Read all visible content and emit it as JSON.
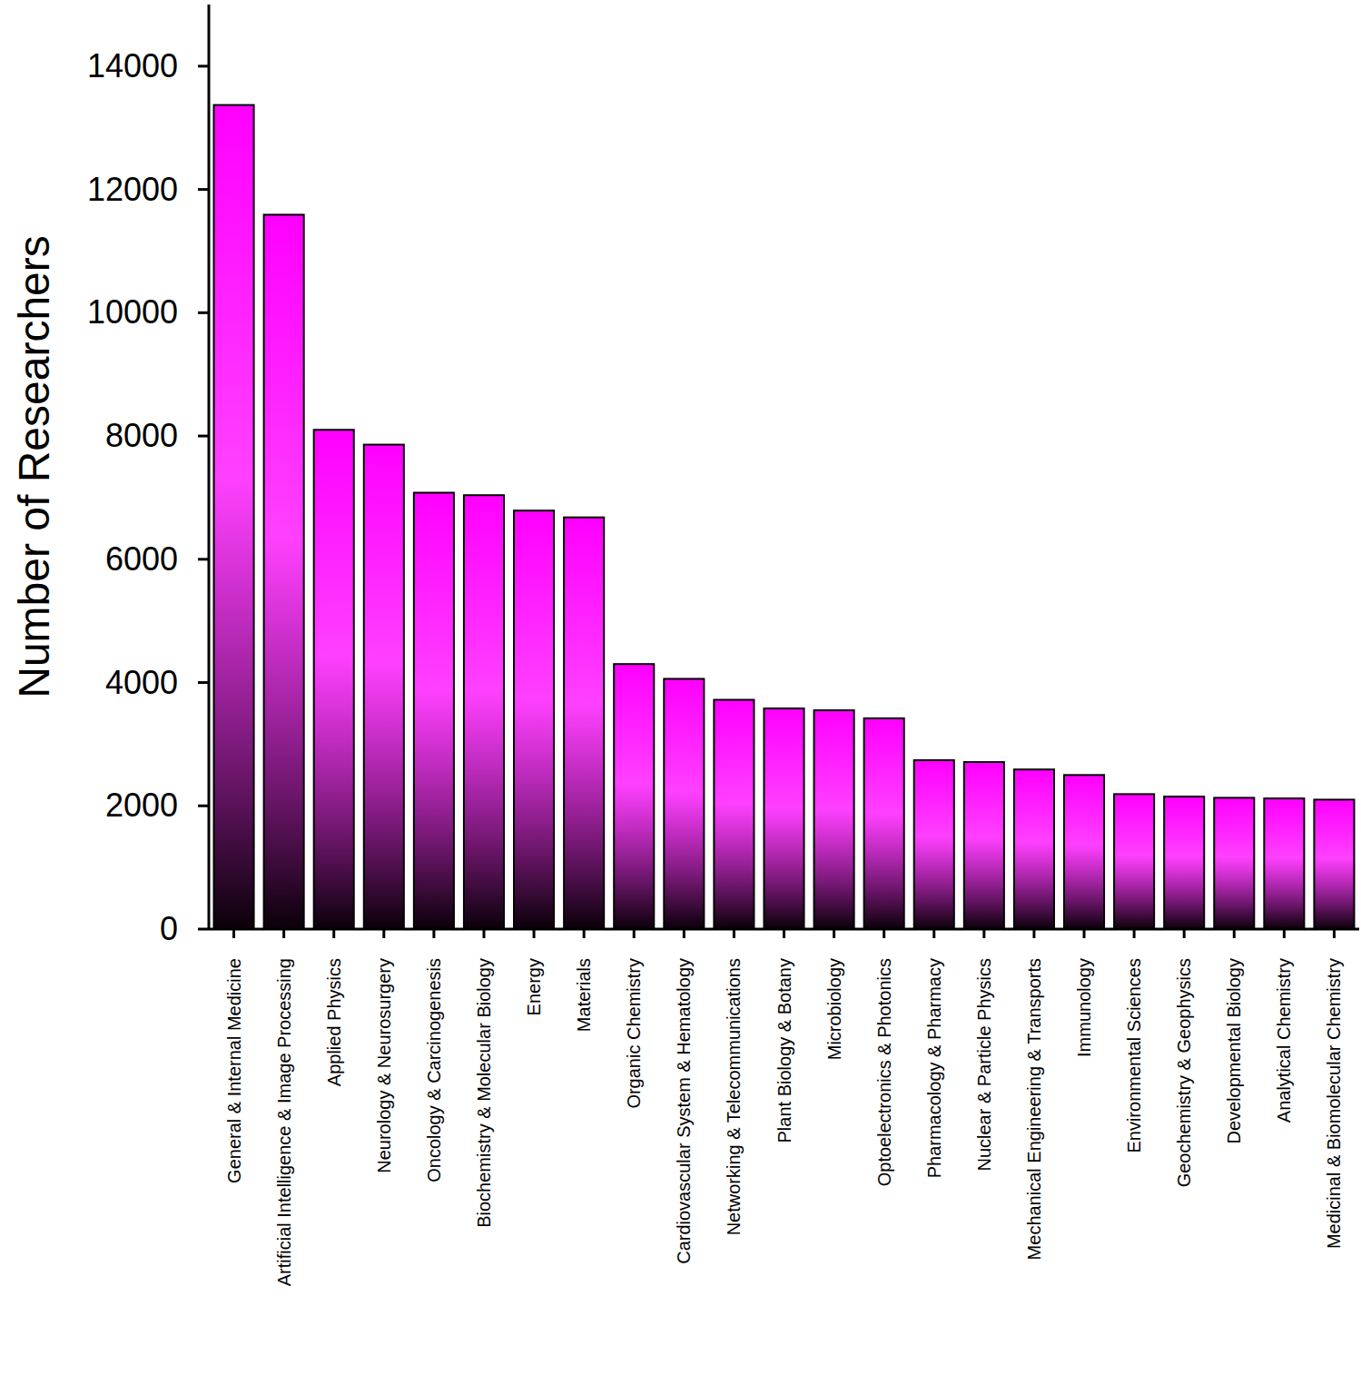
{
  "chart_data": {
    "type": "bar",
    "y_label": "Number of Researchers",
    "categories": [
      "General & Internal Medicine",
      "Artificial Intelligence & Image Processing",
      "Applied Physics",
      "Neurology & Neurosurgery",
      "Oncology & Carcinogenesis",
      "Biochemistry & Molecular Biology",
      "Energy",
      "Materials",
      "Organic Chemistry",
      "Cardiovascular System & Hematology",
      "Networking & Telecommunications",
      "Plant Biology & Botany",
      "Microbiology",
      "Optoelectronics & Photonics",
      "Pharmacology & Pharmacy",
      "Nuclear & Particle Physics",
      "Mechanical Engineering & Transports",
      "Immunology",
      "Environmental Sciences",
      "Geochemistry & Geophysics",
      "Developmental Biology",
      "Analytical Chemistry",
      "Medicinal & Biomolecular Chemistry"
    ],
    "values": [
      13370,
      11590,
      8100,
      7860,
      7080,
      7040,
      6790,
      6680,
      4300,
      4060,
      3720,
      3580,
      3550,
      3420,
      2740,
      2710,
      2590,
      2500,
      2190,
      2150,
      2130,
      2120,
      2100
    ],
    "color": "#ff00ff",
    "ylim": [
      0,
      15000
    ],
    "yticks": [
      0,
      2000,
      4000,
      6000,
      8000,
      10000,
      12000,
      14000
    ],
    "grid": false
  }
}
